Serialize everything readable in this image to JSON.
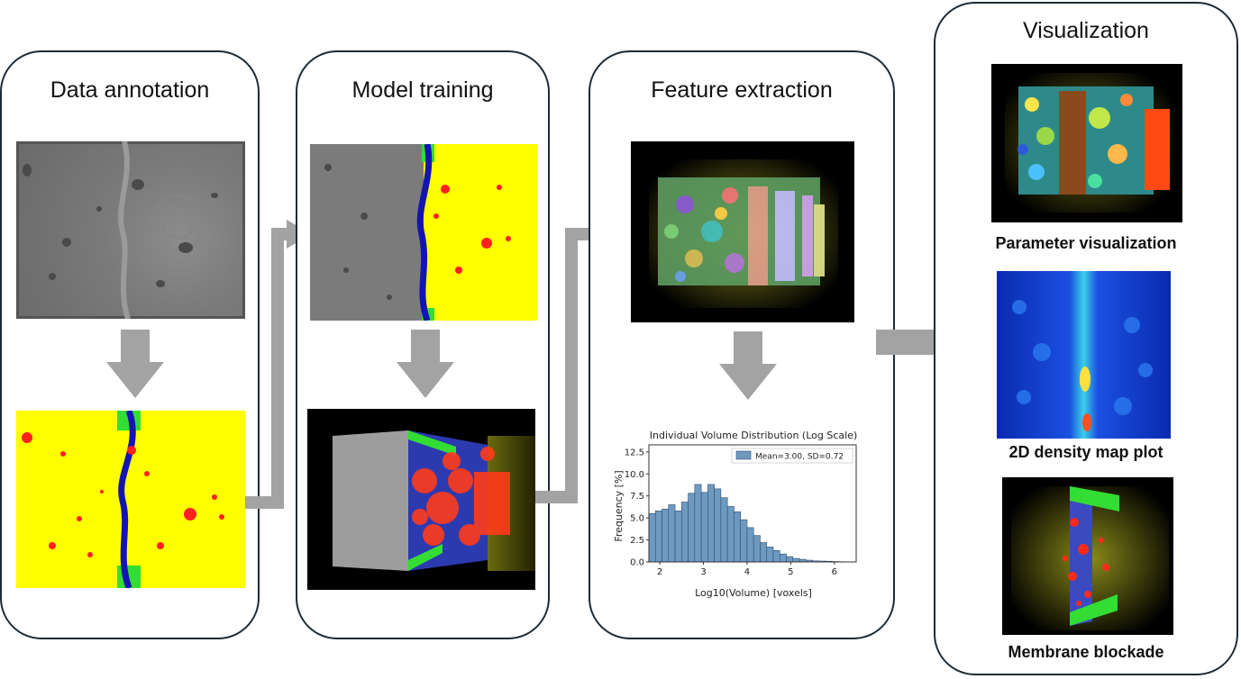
{
  "panels": {
    "annotation": {
      "title": "Data annotation"
    },
    "training": {
      "title": "Model training"
    },
    "extraction": {
      "title": "Feature extraction"
    },
    "visualization": {
      "title": "Visualization"
    }
  },
  "captions": {
    "parameter": "Parameter visualization",
    "density": "2D density map plot",
    "blockade": "Membrane blockade"
  },
  "colors": {
    "panel_border": "#1c2b36",
    "arrow": "#a3a3a3",
    "mask_background": "#ffff00",
    "particles": "#ff2020",
    "membrane": "#1414b4",
    "membrane_ends": "#33dd33",
    "histogram_bar": "#6e9ac2"
  },
  "chart_data": {
    "type": "bar",
    "title": "Individual Volume Distribution (Log Scale)",
    "xlabel": "Log10(Volume) [voxels]",
    "ylabel": "Frequency [%]",
    "xlim": [
      1.75,
      6.5
    ],
    "ylim": [
      0,
      13.3
    ],
    "xticks": [
      2,
      3,
      4,
      5,
      6
    ],
    "yticks": [
      0.0,
      2.5,
      5.0,
      7.5,
      10.0,
      12.5
    ],
    "ytick_labels": [
      "0.0",
      "2.5",
      "5.0",
      "7.5",
      "10.0",
      "12.5"
    ],
    "bin_width": 0.15,
    "bins_start": [
      1.75,
      1.9,
      2.05,
      2.2,
      2.35,
      2.5,
      2.65,
      2.8,
      2.95,
      3.1,
      3.25,
      3.4,
      3.55,
      3.7,
      3.85,
      4.0,
      4.15,
      4.3,
      4.45,
      4.6,
      4.75,
      4.9,
      5.05,
      5.2,
      5.35,
      5.5,
      5.65,
      5.8,
      5.95,
      6.1,
      6.25
    ],
    "values": [
      5.5,
      5.8,
      6.0,
      6.5,
      5.8,
      6.8,
      7.8,
      8.8,
      7.9,
      8.8,
      8.3,
      7.3,
      6.3,
      5.7,
      4.8,
      3.9,
      3.0,
      2.2,
      1.7,
      1.3,
      0.9,
      0.6,
      0.4,
      0.3,
      0.2,
      0.12,
      0.1,
      0.08,
      0.05,
      0.03,
      0.02
    ],
    "legend": {
      "label": "Mean=3.00, SD=0.72",
      "position": "top-right"
    }
  }
}
